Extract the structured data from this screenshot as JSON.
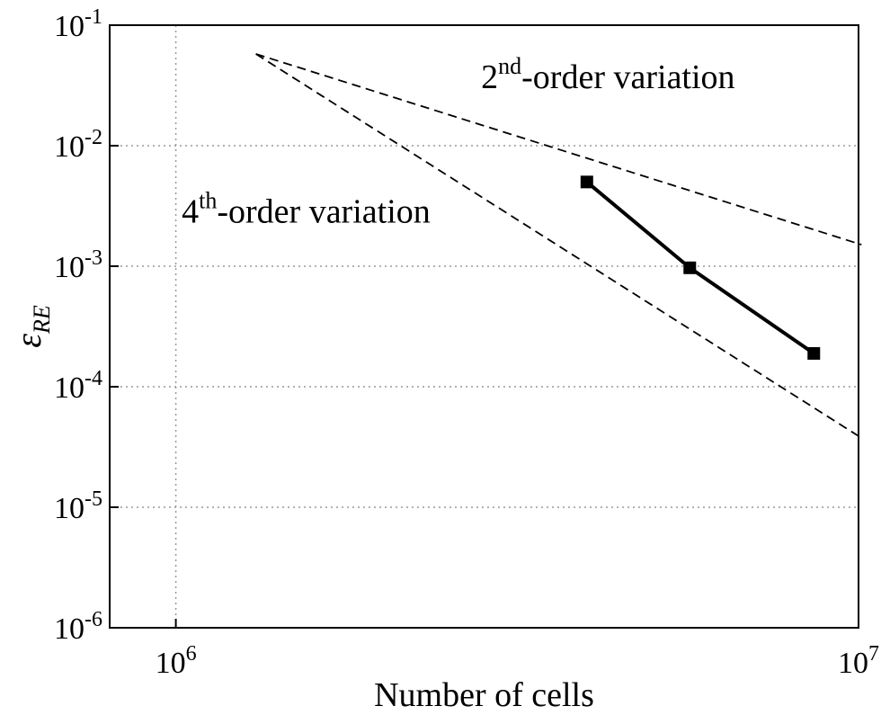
{
  "chart_data": {
    "type": "line",
    "xlabel": "Number of cells",
    "ylabel": {
      "main": "ε",
      "sub": "RE"
    },
    "xscale": "log",
    "yscale": "log",
    "xlim": [
      800000,
      10000000
    ],
    "ylim": [
      1e-06,
      0.1
    ],
    "xticks": [
      {
        "value": 1000000,
        "label": "106"
      },
      {
        "value": 10000000,
        "label": "107"
      }
    ],
    "yticks": [
      {
        "value": 0.1,
        "label": "10-1"
      },
      {
        "value": 0.01,
        "label": "10-2"
      },
      {
        "value": 0.001,
        "label": "10-3"
      },
      {
        "value": 0.0001,
        "label": "10-4"
      },
      {
        "value": 1e-05,
        "label": "10-5"
      },
      {
        "value": 1e-06,
        "label": "10-6"
      }
    ],
    "grid": true,
    "series": [
      {
        "color": "#000000",
        "style": "solid",
        "marker": "square",
        "x": [
          4000000,
          5660000,
          8600000
        ],
        "values": [
          0.005,
          0.00097,
          0.000189
        ]
      },
      {
        "color": "#000000",
        "style": "dashed",
        "marker": "none",
        "x": [
          1310000,
          10100000
        ],
        "values": [
          0.0577,
          0.00151
        ]
      },
      {
        "color": "#000000",
        "style": "dashed",
        "marker": "none",
        "x": [
          1310000,
          10100000
        ],
        "values": [
          0.0577,
          3.76e-05
        ]
      }
    ],
    "annotations": [
      {
        "base": "2",
        "sup": "nd",
        "rest": "-order variation",
        "x": 2800000,
        "y": 0.03
      },
      {
        "base": "4",
        "sup": "th",
        "rest": "-order variation",
        "x": 1020000,
        "y": 0.0023
      }
    ]
  }
}
